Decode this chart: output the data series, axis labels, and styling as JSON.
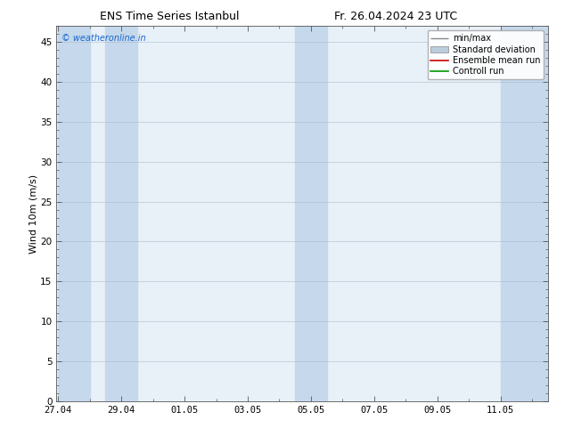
{
  "title_left": "ENS Time Series Istanbul",
  "title_right": "Fr. 26.04.2024 23 UTC",
  "ylabel": "Wind 10m (m/s)",
  "watermark": "© weatheronline.in",
  "watermark_color": "#1a66cc",
  "ylim": [
    0,
    47
  ],
  "yticks": [
    0,
    5,
    10,
    15,
    20,
    25,
    30,
    35,
    40,
    45
  ],
  "xlabel_ticks": [
    "27.04",
    "29.04",
    "01.05",
    "03.05",
    "05.05",
    "07.05",
    "09.05",
    "11.05"
  ],
  "bg_color": "#ffffff",
  "plot_bg_color": "#e8f0f8",
  "band_color": "#c5d8ec",
  "legend_entries": [
    "min/max",
    "Standard deviation",
    "Ensemble mean run",
    "Controll run"
  ],
  "legend_colors_line": [
    "#999999",
    "#bbbbbb",
    "#ff0000",
    "#00aa00"
  ],
  "title_fontsize": 9,
  "axis_fontsize": 8,
  "tick_fontsize": 7.5,
  "watermark_fontsize": 7,
  "legend_fontsize": 7
}
